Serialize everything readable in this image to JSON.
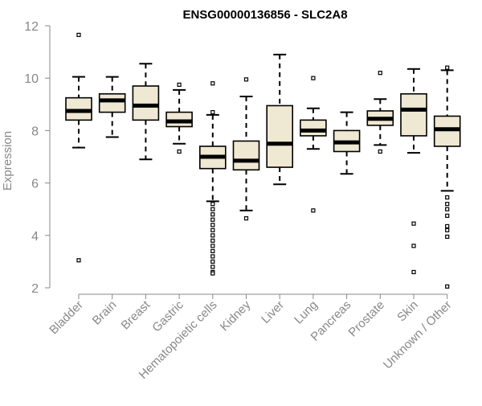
{
  "chart_data": {
    "type": "box",
    "title": "ENSG00000136856 - SLC2A8",
    "xlabel": "",
    "ylabel": "Expression",
    "ylim": [
      2,
      12
    ],
    "yticks": [
      2,
      4,
      6,
      8,
      10,
      12
    ],
    "grid": false,
    "legend": "none",
    "box_fill": "#efe8d2",
    "line_color": "#000000",
    "axis_color": "#888888",
    "categories": [
      "Bladder",
      "Brain",
      "Breast",
      "Gastric",
      "Hematopoietic cells",
      "Kidney",
      "Liver",
      "Lung",
      "Pancreas",
      "Prostate",
      "Skin",
      "Unknown / Other"
    ],
    "boxes": [
      {
        "min": 7.35,
        "q1": 8.4,
        "median": 8.75,
        "q3": 9.25,
        "max": 10.05,
        "outliers": [
          11.65,
          3.05
        ]
      },
      {
        "min": 7.75,
        "q1": 8.7,
        "median": 9.15,
        "q3": 9.4,
        "max": 10.05,
        "outliers": []
      },
      {
        "min": 6.9,
        "q1": 8.4,
        "median": 8.95,
        "q3": 9.7,
        "max": 10.55,
        "outliers": []
      },
      {
        "min": 7.5,
        "q1": 8.15,
        "median": 8.35,
        "q3": 8.7,
        "max": 9.55,
        "outliers": [
          9.75,
          7.2
        ]
      },
      {
        "min": 5.3,
        "q1": 6.55,
        "median": 7.0,
        "q3": 7.4,
        "max": 8.6,
        "outliers": [
          9.8,
          8.7,
          5.2,
          5.0,
          4.8,
          4.6,
          4.4,
          4.2,
          4.0,
          3.8,
          3.6,
          3.4,
          3.2,
          3.0,
          2.8,
          2.6,
          2.55
        ]
      },
      {
        "min": 4.95,
        "q1": 6.5,
        "median": 6.85,
        "q3": 7.6,
        "max": 9.3,
        "outliers": [
          9.95,
          4.65
        ]
      },
      {
        "min": 5.95,
        "q1": 6.6,
        "median": 7.5,
        "q3": 8.95,
        "max": 10.9,
        "outliers": []
      },
      {
        "min": 7.3,
        "q1": 7.8,
        "median": 8.0,
        "q3": 8.4,
        "max": 8.85,
        "outliers": [
          10.0,
          4.95
        ]
      },
      {
        "min": 6.35,
        "q1": 7.2,
        "median": 7.55,
        "q3": 8.0,
        "max": 8.7,
        "outliers": []
      },
      {
        "min": 7.45,
        "q1": 8.2,
        "median": 8.45,
        "q3": 8.75,
        "max": 9.2,
        "outliers": [
          10.2,
          7.2
        ]
      },
      {
        "min": 7.15,
        "q1": 7.8,
        "median": 8.8,
        "q3": 9.4,
        "max": 10.35,
        "outliers": [
          4.45,
          3.6,
          2.6
        ]
      },
      {
        "min": 5.7,
        "q1": 7.4,
        "median": 8.05,
        "q3": 8.55,
        "max": 10.3,
        "outliers": [
          10.4,
          5.45,
          5.2,
          5.0,
          4.75,
          4.35,
          4.2,
          3.95,
          2.05
        ]
      }
    ]
  }
}
